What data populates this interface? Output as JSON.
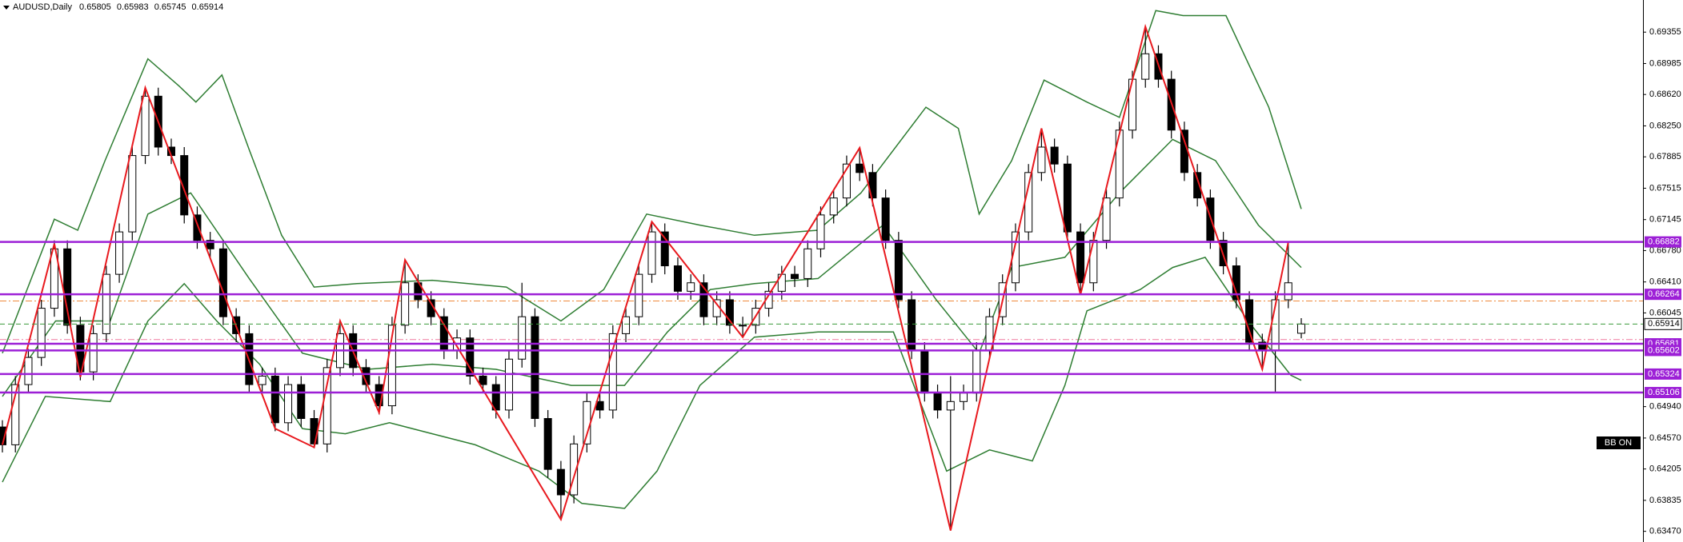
{
  "chart_data": {
    "type": "candlestick",
    "ticker": "AUDUSD,Daily",
    "ylim": [
      0.63344,
      0.69734
    ],
    "yticks": [
      0.69355,
      0.68985,
      {
        "value": 0.6862,
        "label": "0.68620"
      },
      {
        "value": 0.6825,
        "label": "0.68250"
      },
      0.67885,
      0.67515,
      0.67145,
      {
        "value": 0.6678,
        "label": "0.66780"
      },
      {
        "value": 0.6641,
        "label": "0.66410"
      },
      0.66045,
      {
        "value": 0.6494,
        "label": "0.64940"
      },
      {
        "value": 0.6457,
        "label": "0.64570"
      },
      0.64205,
      0.63835,
      {
        "value": 0.6347,
        "label": "0.63470"
      }
    ],
    "ohlc": [
      [
        0.647,
        0.6478,
        0.644,
        0.6449
      ],
      [
        0.6449,
        0.653,
        0.644,
        0.652
      ],
      [
        0.652,
        0.6562,
        0.651,
        0.6552
      ],
      [
        0.6552,
        0.662,
        0.6542,
        0.661
      ],
      [
        0.661,
        0.669,
        0.66,
        0.668
      ],
      [
        0.668,
        0.669,
        0.658,
        0.659
      ],
      [
        0.659,
        0.66,
        0.6525,
        0.6535
      ],
      [
        0.6535,
        0.659,
        0.6525,
        0.658
      ],
      [
        0.658,
        0.666,
        0.657,
        0.665
      ],
      [
        0.665,
        0.671,
        0.664,
        0.67
      ],
      [
        0.67,
        0.68,
        0.669,
        0.679
      ],
      [
        0.679,
        0.687,
        0.678,
        0.686
      ],
      [
        0.686,
        0.687,
        0.679,
        0.68
      ],
      [
        0.68,
        0.681,
        0.678,
        0.679
      ],
      [
        0.679,
        0.68,
        0.671,
        0.672
      ],
      [
        0.672,
        0.673,
        0.668,
        0.669
      ],
      [
        0.669,
        0.67,
        0.667,
        0.668
      ],
      [
        0.668,
        0.669,
        0.659,
        0.66
      ],
      [
        0.66,
        0.661,
        0.657,
        0.658
      ],
      [
        0.658,
        0.659,
        0.651,
        0.652
      ],
      [
        0.652,
        0.654,
        0.651,
        0.653
      ],
      [
        0.653,
        0.654,
        0.6465,
        0.6475
      ],
      [
        0.6475,
        0.653,
        0.6465,
        0.652
      ],
      [
        0.652,
        0.653,
        0.647,
        0.648
      ],
      [
        0.648,
        0.649,
        0.6445,
        0.645
      ],
      [
        0.645,
        0.655,
        0.644,
        0.654
      ],
      [
        0.654,
        0.6595,
        0.653,
        0.658
      ],
      [
        0.658,
        0.659,
        0.653,
        0.654
      ],
      [
        0.654,
        0.655,
        0.651,
        0.652
      ],
      [
        0.652,
        0.653,
        0.6485,
        0.6495
      ],
      [
        0.6495,
        0.66,
        0.6485,
        0.659
      ],
      [
        0.659,
        0.6667,
        0.658,
        0.664
      ],
      [
        0.664,
        0.665,
        0.661,
        0.662
      ],
      [
        0.662,
        0.663,
        0.659,
        0.66
      ],
      [
        0.66,
        0.661,
        0.655,
        0.656
      ],
      [
        0.656,
        0.6585,
        0.655,
        0.6575
      ],
      [
        0.6575,
        0.6585,
        0.652,
        0.653
      ],
      [
        0.653,
        0.654,
        0.651,
        0.652
      ],
      [
        0.652,
        0.653,
        0.648,
        0.649
      ],
      [
        0.649,
        0.656,
        0.648,
        0.655
      ],
      [
        0.655,
        0.664,
        0.654,
        0.66
      ],
      [
        0.66,
        0.661,
        0.647,
        0.648
      ],
      [
        0.648,
        0.649,
        0.641,
        0.642
      ],
      [
        0.642,
        0.643,
        0.6361,
        0.639
      ],
      [
        0.639,
        0.646,
        0.638,
        0.645
      ],
      [
        0.645,
        0.651,
        0.644,
        0.65
      ],
      [
        0.65,
        0.651,
        0.648,
        0.649
      ],
      [
        0.649,
        0.659,
        0.648,
        0.658
      ],
      [
        0.658,
        0.661,
        0.657,
        0.66
      ],
      [
        0.66,
        0.666,
        0.659,
        0.665
      ],
      [
        0.665,
        0.6712,
        0.664,
        0.67
      ],
      [
        0.67,
        0.671,
        0.665,
        0.666
      ],
      [
        0.666,
        0.667,
        0.662,
        0.663
      ],
      [
        0.663,
        0.665,
        0.662,
        0.664
      ],
      [
        0.664,
        0.665,
        0.659,
        0.66
      ],
      [
        0.66,
        0.663,
        0.659,
        0.662
      ],
      [
        0.662,
        0.663,
        0.658,
        0.659
      ],
      [
        0.659,
        0.66,
        0.6576,
        0.659
      ],
      [
        0.659,
        0.662,
        0.658,
        0.661
      ],
      [
        0.661,
        0.664,
        0.66,
        0.663
      ],
      [
        0.663,
        0.666,
        0.662,
        0.665
      ],
      [
        0.665,
        0.666,
        0.6635,
        0.6645
      ],
      [
        0.6645,
        0.669,
        0.6635,
        0.668
      ],
      [
        0.668,
        0.673,
        0.667,
        0.672
      ],
      [
        0.672,
        0.675,
        0.671,
        0.674
      ],
      [
        0.674,
        0.679,
        0.673,
        0.678
      ],
      [
        0.678,
        0.6799,
        0.676,
        0.677
      ],
      [
        0.677,
        0.678,
        0.673,
        0.674
      ],
      [
        0.674,
        0.675,
        0.668,
        0.669
      ],
      [
        0.669,
        0.67,
        0.661,
        0.662
      ],
      [
        0.662,
        0.663,
        0.655,
        0.656
      ],
      [
        0.656,
        0.657,
        0.65,
        0.651
      ],
      [
        0.651,
        0.652,
        0.648,
        0.649
      ],
      [
        0.649,
        0.653,
        0.6348,
        0.65
      ],
      [
        0.65,
        0.652,
        0.649,
        0.651
      ],
      [
        0.651,
        0.657,
        0.65,
        0.656
      ],
      [
        0.656,
        0.661,
        0.655,
        0.66
      ],
      [
        0.66,
        0.665,
        0.659,
        0.664
      ],
      [
        0.664,
        0.671,
        0.663,
        0.67
      ],
      [
        0.67,
        0.678,
        0.669,
        0.677
      ],
      [
        0.677,
        0.6822,
        0.676,
        0.68
      ],
      [
        0.68,
        0.681,
        0.677,
        0.678
      ],
      [
        0.678,
        0.679,
        0.669,
        0.67
      ],
      [
        0.67,
        0.671,
        0.6626,
        0.664
      ],
      [
        0.664,
        0.67,
        0.663,
        0.669
      ],
      [
        0.669,
        0.675,
        0.668,
        0.674
      ],
      [
        0.674,
        0.683,
        0.673,
        0.682
      ],
      [
        0.682,
        0.689,
        0.681,
        0.688
      ],
      [
        0.688,
        0.6942,
        0.687,
        0.691
      ],
      [
        0.691,
        0.692,
        0.687,
        0.688
      ],
      [
        0.688,
        0.689,
        0.681,
        0.682
      ],
      [
        0.682,
        0.683,
        0.676,
        0.677
      ],
      [
        0.677,
        0.678,
        0.673,
        0.674
      ],
      [
        0.674,
        0.675,
        0.668,
        0.669
      ],
      [
        0.669,
        0.67,
        0.665,
        0.666
      ],
      [
        0.666,
        0.667,
        0.661,
        0.662
      ],
      [
        0.662,
        0.663,
        0.656,
        0.657
      ],
      [
        0.657,
        0.658,
        0.6538,
        0.656
      ],
      [
        0.656,
        0.663,
        0.6511,
        0.662
      ],
      [
        0.662,
        0.6688,
        0.661,
        0.664
      ],
      [
        0.65805,
        0.65983,
        0.65745,
        0.65914
      ]
    ],
    "bull_color": "#ffffff",
    "bear_color": "#000000",
    "zigzag": {
      "color": "#e8191e",
      "x": [
        0,
        4,
        6,
        11,
        21,
        24,
        26,
        29,
        31,
        43,
        50,
        57,
        66,
        73,
        80,
        83,
        88,
        97,
        99
      ],
      "values": [
        0.6449,
        0.6686,
        0.6529,
        0.687,
        0.6468,
        0.6446,
        0.6595,
        0.6487,
        0.6667,
        0.6361,
        0.6712,
        0.6576,
        0.6799,
        0.6348,
        0.6822,
        0.6626,
        0.6942,
        0.6538,
        0.6688
      ]
    },
    "bands": [
      {
        "color": "#2e7d32",
        "x": [
          0,
          4.0,
          5.8,
          7.9,
          11.2,
          13.6,
          14.9,
          16.9,
          19.0,
          21.5,
          24.0,
          27.3,
          33.1,
          38.8,
          43.0,
          46.3,
          49.6,
          53.7,
          57.9,
          62.8,
          66.1,
          71.1,
          73.6,
          75.2,
          77.7,
          80.2,
          83.5,
          86.0,
          88.8,
          90.9,
          94.2,
          97.5,
          100
        ],
        "values": [
          0.6557,
          0.6715,
          0.6702,
          0.6784,
          0.6904,
          0.6872,
          0.6853,
          0.6885,
          0.6797,
          0.6696,
          0.6635,
          0.6639,
          0.6643,
          0.6635,
          0.6595,
          0.6632,
          0.6721,
          0.6708,
          0.6696,
          0.6702,
          0.6746,
          0.6847,
          0.6822,
          0.6721,
          0.6784,
          0.6879,
          0.6853,
          0.6835,
          0.6961,
          0.6955,
          0.6955,
          0.6847,
          0.6727
        ]
      },
      {
        "color": "#2e7d32",
        "x": [
          0,
          4.1,
          8.3,
          11.2,
          14.5,
          19.0,
          23.1,
          28.1,
          33.1,
          38.0,
          43.8,
          47.9,
          51.2,
          54.5,
          57.9,
          62.8,
          67.8,
          71.9,
          75.2,
          77.7,
          81.8,
          86.0,
          90.1,
          93.4,
          96.7,
          100
        ],
        "values": [
          0.6506,
          0.6595,
          0.6595,
          0.6721,
          0.6746,
          0.6645,
          0.6557,
          0.6538,
          0.6544,
          0.6538,
          0.6519,
          0.6519,
          0.6582,
          0.6632,
          0.6639,
          0.6645,
          0.6708,
          0.662,
          0.6557,
          0.6658,
          0.667,
          0.6746,
          0.6809,
          0.6784,
          0.6708,
          0.6658
        ]
      },
      {
        "color": "#2e7d32",
        "x": [
          0,
          3.3,
          8.3,
          11.2,
          14.0,
          16.5,
          19.8,
          23.1,
          26.4,
          29.8,
          33.1,
          36.4,
          41.3,
          44.6,
          47.9,
          50.4,
          53.7,
          57.9,
          62.8,
          68.6,
          72.7,
          76.0,
          79.3,
          81.8,
          83.5,
          87.6,
          90.1,
          92.6,
          95.9,
          99.2,
          100
        ],
        "values": [
          0.6405,
          0.6506,
          0.65,
          0.6595,
          0.6639,
          0.6595,
          0.6544,
          0.6468,
          0.6462,
          0.6475,
          0.6462,
          0.6449,
          0.6418,
          0.638,
          0.6374,
          0.6418,
          0.6519,
          0.6576,
          0.6582,
          0.6582,
          0.6418,
          0.6443,
          0.643,
          0.6519,
          0.6607,
          0.6632,
          0.6658,
          0.667,
          0.6595,
          0.6531,
          0.6525
        ]
      }
    ],
    "levels": {
      "color": "#9c1fd6",
      "values": [
        0.66882,
        0.66264,
        0.65681,
        0.65602,
        0.65324,
        0.65106
      ]
    },
    "current_color": "#3a9a3a",
    "dashed_lines": [
      {
        "value": 0.66185,
        "color": "#f08a3c"
      },
      {
        "value": 0.65731,
        "color": "#f07aa0"
      }
    ],
    "badge": "BB ON"
  }
}
